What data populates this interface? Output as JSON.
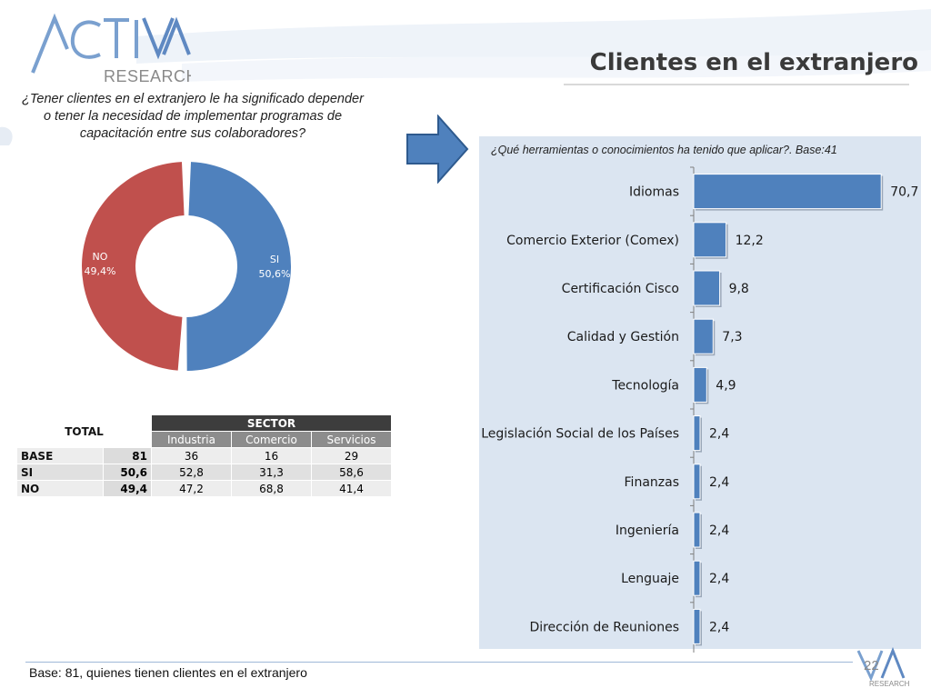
{
  "header": {
    "logo_main": "ACTIVA",
    "logo_sub": "RESEARCH",
    "title": "Clientes en el extranjero"
  },
  "left": {
    "question": "¿Tener clientes en el extranjero le ha significado depender o tener la necesidad de implementar programas de capacitación entre sus colaboradores?"
  },
  "donut": {
    "slices": [
      {
        "label": "SI",
        "value": 50.6,
        "value_text": "50,6%",
        "color": "#4f81bd"
      },
      {
        "label": "NO",
        "value": 49.4,
        "value_text": "49,4%",
        "color": "#c0504d"
      }
    ]
  },
  "table": {
    "total_header": "TOTAL",
    "sector_header": "SECTOR",
    "columns": [
      "Industria",
      "Comercio",
      "Servicios"
    ],
    "rows": [
      {
        "label": "BASE",
        "total": "81",
        "values": [
          "36",
          "16",
          "29"
        ]
      },
      {
        "label": "SI",
        "total": "50,6",
        "values": [
          "52,8",
          "31,3",
          "58,6"
        ]
      },
      {
        "label": "NO",
        "total": "49,4",
        "values": [
          "47,2",
          "68,8",
          "41,4"
        ]
      }
    ]
  },
  "chart_data": {
    "type": "bar",
    "title": "¿Qué herramientas o conocimientos ha tenido que aplicar?. Base:41",
    "categories": [
      "Idiomas",
      "Comercio Exterior (Comex)",
      "Certificación Cisco",
      "Calidad y Gestión",
      "Tecnología",
      "Legislación Social de los Países",
      "Finanzas",
      "Ingeniería",
      "Lenguaje",
      "Dirección de Reuniones"
    ],
    "values": [
      70.7,
      12.2,
      9.8,
      7.3,
      4.9,
      2.4,
      2.4,
      2.4,
      2.4,
      2.4
    ],
    "value_labels": [
      "70,7",
      "12,2",
      "9,8",
      "7,3",
      "4,9",
      "2,4",
      "2,4",
      "2,4",
      "2,4",
      "2,4"
    ],
    "xlim": [
      0,
      72
    ],
    "bar_color": "#4f81bd",
    "orientation": "horizontal",
    "grid": false
  },
  "footer": {
    "base_note": "Base: 81, quienes tienen clientes en el extranjero",
    "page_number": "22",
    "footer_logo": "RESEARCH"
  }
}
